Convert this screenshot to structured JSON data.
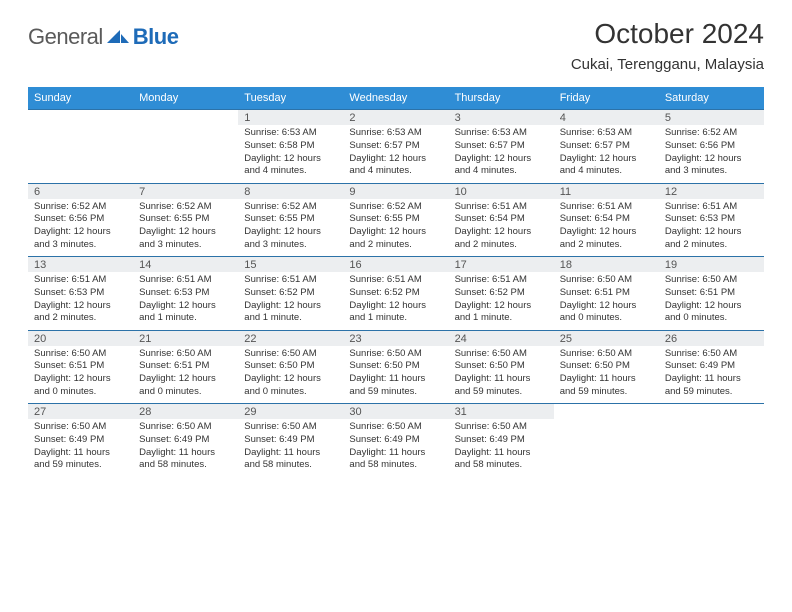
{
  "logo": {
    "part1": "General",
    "part2": "Blue"
  },
  "title": "October 2024",
  "location": "Cukai, Terengganu, Malaysia",
  "colors": {
    "header_bg": "#2f8dd5",
    "border": "#2c72a8",
    "daynum_bg": "#eceef0",
    "logo_blue": "#1e6bb8"
  },
  "day_headers": [
    "Sunday",
    "Monday",
    "Tuesday",
    "Wednesday",
    "Thursday",
    "Friday",
    "Saturday"
  ],
  "weeks": [
    [
      null,
      null,
      {
        "n": "1",
        "sr": "Sunrise: 6:53 AM",
        "ss": "Sunset: 6:58 PM",
        "dl": "Daylight: 12 hours and 4 minutes."
      },
      {
        "n": "2",
        "sr": "Sunrise: 6:53 AM",
        "ss": "Sunset: 6:57 PM",
        "dl": "Daylight: 12 hours and 4 minutes."
      },
      {
        "n": "3",
        "sr": "Sunrise: 6:53 AM",
        "ss": "Sunset: 6:57 PM",
        "dl": "Daylight: 12 hours and 4 minutes."
      },
      {
        "n": "4",
        "sr": "Sunrise: 6:53 AM",
        "ss": "Sunset: 6:57 PM",
        "dl": "Daylight: 12 hours and 4 minutes."
      },
      {
        "n": "5",
        "sr": "Sunrise: 6:52 AM",
        "ss": "Sunset: 6:56 PM",
        "dl": "Daylight: 12 hours and 3 minutes."
      }
    ],
    [
      {
        "n": "6",
        "sr": "Sunrise: 6:52 AM",
        "ss": "Sunset: 6:56 PM",
        "dl": "Daylight: 12 hours and 3 minutes."
      },
      {
        "n": "7",
        "sr": "Sunrise: 6:52 AM",
        "ss": "Sunset: 6:55 PM",
        "dl": "Daylight: 12 hours and 3 minutes."
      },
      {
        "n": "8",
        "sr": "Sunrise: 6:52 AM",
        "ss": "Sunset: 6:55 PM",
        "dl": "Daylight: 12 hours and 3 minutes."
      },
      {
        "n": "9",
        "sr": "Sunrise: 6:52 AM",
        "ss": "Sunset: 6:55 PM",
        "dl": "Daylight: 12 hours and 2 minutes."
      },
      {
        "n": "10",
        "sr": "Sunrise: 6:51 AM",
        "ss": "Sunset: 6:54 PM",
        "dl": "Daylight: 12 hours and 2 minutes."
      },
      {
        "n": "11",
        "sr": "Sunrise: 6:51 AM",
        "ss": "Sunset: 6:54 PM",
        "dl": "Daylight: 12 hours and 2 minutes."
      },
      {
        "n": "12",
        "sr": "Sunrise: 6:51 AM",
        "ss": "Sunset: 6:53 PM",
        "dl": "Daylight: 12 hours and 2 minutes."
      }
    ],
    [
      {
        "n": "13",
        "sr": "Sunrise: 6:51 AM",
        "ss": "Sunset: 6:53 PM",
        "dl": "Daylight: 12 hours and 2 minutes."
      },
      {
        "n": "14",
        "sr": "Sunrise: 6:51 AM",
        "ss": "Sunset: 6:53 PM",
        "dl": "Daylight: 12 hours and 1 minute."
      },
      {
        "n": "15",
        "sr": "Sunrise: 6:51 AM",
        "ss": "Sunset: 6:52 PM",
        "dl": "Daylight: 12 hours and 1 minute."
      },
      {
        "n": "16",
        "sr": "Sunrise: 6:51 AM",
        "ss": "Sunset: 6:52 PM",
        "dl": "Daylight: 12 hours and 1 minute."
      },
      {
        "n": "17",
        "sr": "Sunrise: 6:51 AM",
        "ss": "Sunset: 6:52 PM",
        "dl": "Daylight: 12 hours and 1 minute."
      },
      {
        "n": "18",
        "sr": "Sunrise: 6:50 AM",
        "ss": "Sunset: 6:51 PM",
        "dl": "Daylight: 12 hours and 0 minutes."
      },
      {
        "n": "19",
        "sr": "Sunrise: 6:50 AM",
        "ss": "Sunset: 6:51 PM",
        "dl": "Daylight: 12 hours and 0 minutes."
      }
    ],
    [
      {
        "n": "20",
        "sr": "Sunrise: 6:50 AM",
        "ss": "Sunset: 6:51 PM",
        "dl": "Daylight: 12 hours and 0 minutes."
      },
      {
        "n": "21",
        "sr": "Sunrise: 6:50 AM",
        "ss": "Sunset: 6:51 PM",
        "dl": "Daylight: 12 hours and 0 minutes."
      },
      {
        "n": "22",
        "sr": "Sunrise: 6:50 AM",
        "ss": "Sunset: 6:50 PM",
        "dl": "Daylight: 12 hours and 0 minutes."
      },
      {
        "n": "23",
        "sr": "Sunrise: 6:50 AM",
        "ss": "Sunset: 6:50 PM",
        "dl": "Daylight: 11 hours and 59 minutes."
      },
      {
        "n": "24",
        "sr": "Sunrise: 6:50 AM",
        "ss": "Sunset: 6:50 PM",
        "dl": "Daylight: 11 hours and 59 minutes."
      },
      {
        "n": "25",
        "sr": "Sunrise: 6:50 AM",
        "ss": "Sunset: 6:50 PM",
        "dl": "Daylight: 11 hours and 59 minutes."
      },
      {
        "n": "26",
        "sr": "Sunrise: 6:50 AM",
        "ss": "Sunset: 6:49 PM",
        "dl": "Daylight: 11 hours and 59 minutes."
      }
    ],
    [
      {
        "n": "27",
        "sr": "Sunrise: 6:50 AM",
        "ss": "Sunset: 6:49 PM",
        "dl": "Daylight: 11 hours and 59 minutes."
      },
      {
        "n": "28",
        "sr": "Sunrise: 6:50 AM",
        "ss": "Sunset: 6:49 PM",
        "dl": "Daylight: 11 hours and 58 minutes."
      },
      {
        "n": "29",
        "sr": "Sunrise: 6:50 AM",
        "ss": "Sunset: 6:49 PM",
        "dl": "Daylight: 11 hours and 58 minutes."
      },
      {
        "n": "30",
        "sr": "Sunrise: 6:50 AM",
        "ss": "Sunset: 6:49 PM",
        "dl": "Daylight: 11 hours and 58 minutes."
      },
      {
        "n": "31",
        "sr": "Sunrise: 6:50 AM",
        "ss": "Sunset: 6:49 PM",
        "dl": "Daylight: 11 hours and 58 minutes."
      },
      null,
      null
    ]
  ]
}
